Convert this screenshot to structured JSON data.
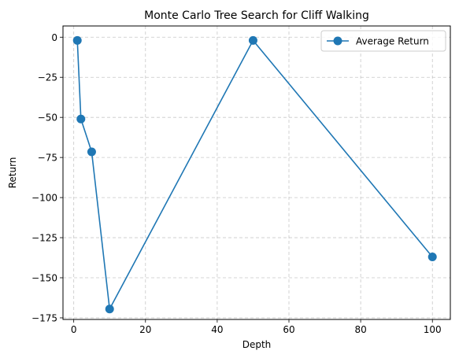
{
  "chart_data": {
    "type": "line",
    "title": "Monte Carlo Tree Search for Cliff Walking",
    "xlabel": "Depth",
    "ylabel": "Return",
    "xlim": [
      -3,
      105
    ],
    "ylim": [
      -176,
      7
    ],
    "xticks": [
      0,
      20,
      40,
      60,
      80,
      100
    ],
    "yticks": [
      0,
      -25,
      -50,
      -75,
      -100,
      -125,
      -150,
      -175
    ],
    "grid": true,
    "legend_position": "top-right",
    "series": [
      {
        "name": "Average Return",
        "color": "#1f77b4",
        "marker": "circle",
        "x": [
          1,
          2,
          5,
          10,
          50,
          100
        ],
        "y": [
          -2,
          -51,
          -71.5,
          -169.5,
          -2,
          -137
        ]
      }
    ]
  }
}
